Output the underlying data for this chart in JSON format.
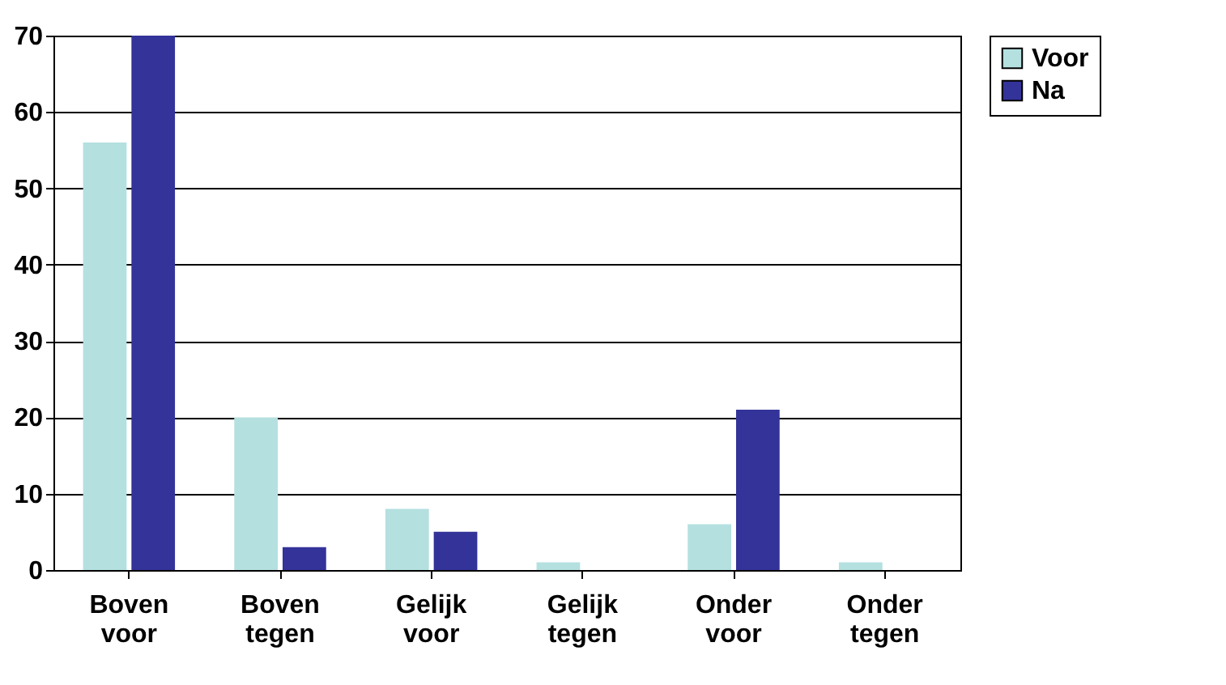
{
  "chart_data": {
    "type": "bar",
    "categories": [
      "Boven voor",
      "Boven tegen",
      "Gelijk voor",
      "Gelijk tegen",
      "Onder voor",
      "Onder tegen"
    ],
    "series": [
      {
        "name": "Voor",
        "color": "#b4e0e0",
        "values": [
          56,
          20,
          8,
          1,
          6,
          1
        ]
      },
      {
        "name": "Na",
        "color": "#333399",
        "values": [
          70,
          3,
          5,
          0,
          21,
          0
        ]
      }
    ],
    "ylim": [
      0,
      70
    ],
    "yticks": [
      0,
      10,
      20,
      30,
      40,
      50,
      60,
      70
    ],
    "grid": "y",
    "legend": "right"
  }
}
